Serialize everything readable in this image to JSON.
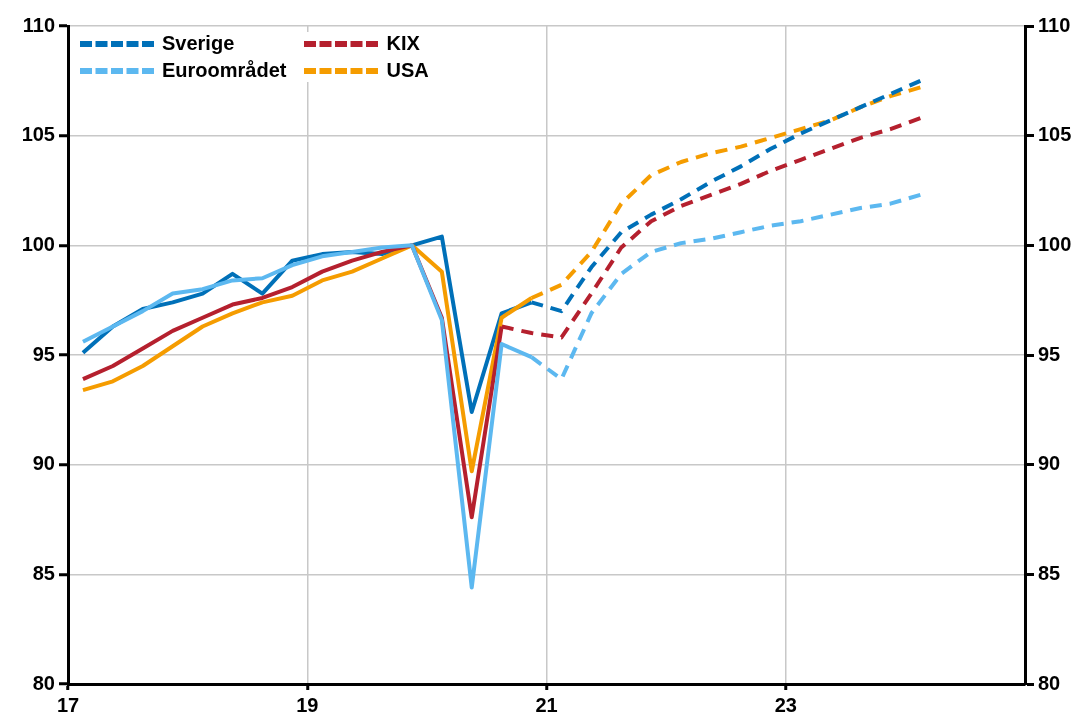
{
  "chart_data": {
    "type": "line",
    "xlim": [
      17,
      25
    ],
    "xticks": [
      17,
      19,
      21,
      23
    ],
    "ylim": [
      80,
      110
    ],
    "yticks": [
      80,
      85,
      90,
      95,
      100,
      105,
      110
    ],
    "y2lim": [
      80,
      110
    ],
    "y2ticks": [
      80,
      85,
      90,
      95,
      100,
      105,
      110
    ],
    "grid": true,
    "legend": "top left",
    "marker": "none",
    "series": [
      {
        "color": "#5cb8f0",
        "line_style": "solid",
        "x": [
          17.125,
          17.375,
          17.625,
          17.875,
          18.125,
          18.375,
          18.625,
          18.875,
          19.125,
          19.375,
          19.625,
          19.875,
          20.125,
          20.375,
          20.625,
          20.875
        ],
        "values": [
          95.6,
          96.3,
          97.0,
          97.8,
          98.0,
          98.4,
          98.5,
          99.1,
          99.5,
          99.7,
          99.9,
          100.0,
          96.6,
          84.4,
          95.5,
          94.9
        ]
      },
      {
        "color": "#b5202e",
        "line_style": "solid",
        "x": [
          17.125,
          17.375,
          17.625,
          17.875,
          18.125,
          18.375,
          18.625,
          18.875,
          19.125,
          19.375,
          19.625,
          19.875,
          20.125,
          20.375,
          20.625
        ],
        "values": [
          93.9,
          94.5,
          95.3,
          96.1,
          96.7,
          97.3,
          97.6,
          98.1,
          98.8,
          99.3,
          99.7,
          100.0,
          96.7,
          87.6,
          96.3
        ]
      },
      {
        "color": "#f59c00",
        "line_style": "solid",
        "x": [
          17.125,
          17.375,
          17.625,
          17.875,
          18.125,
          18.375,
          18.625,
          18.875,
          19.125,
          19.375,
          19.625,
          19.875,
          20.125,
          20.375,
          20.625,
          20.875
        ],
        "values": [
          93.4,
          93.8,
          94.5,
          95.4,
          96.3,
          96.9,
          97.4,
          97.7,
          98.4,
          98.8,
          99.4,
          100.0,
          98.8,
          89.7,
          96.7,
          97.6
        ]
      },
      {
        "color": "#0070b8",
        "line_style": "solid",
        "x": [
          17.125,
          17.375,
          17.625,
          17.875,
          18.125,
          18.375,
          18.625,
          18.875,
          19.125,
          19.375,
          19.625,
          19.875,
          20.125,
          20.375,
          20.625,
          20.875
        ],
        "values": [
          95.1,
          96.3,
          97.1,
          97.4,
          97.8,
          98.7,
          97.8,
          99.3,
          99.6,
          99.7,
          99.6,
          100.0,
          100.4,
          92.4,
          96.9,
          97.4
        ]
      },
      {
        "name": "Sverige",
        "color": "#0070b8",
        "line_style": "dashed",
        "x": [
          20.875,
          21.125,
          21.375,
          21.625,
          21.875,
          22.125,
          22.375,
          22.625,
          22.875,
          23.125,
          23.375,
          23.625,
          23.875,
          24.125
        ],
        "values": [
          97.4,
          97.0,
          99.0,
          100.6,
          101.4,
          102.1,
          102.9,
          103.6,
          104.4,
          105.1,
          105.7,
          106.3,
          106.9,
          107.5
        ]
      },
      {
        "name": "Euroområdet",
        "color": "#5cb8f0",
        "line_style": "dashed",
        "x": [
          20.875,
          21.125,
          21.375,
          21.625,
          21.875,
          22.125,
          22.375,
          22.625,
          22.875,
          23.125,
          23.375,
          23.625,
          23.875,
          24.125
        ],
        "values": [
          94.9,
          93.9,
          96.9,
          98.7,
          99.7,
          100.1,
          100.3,
          100.6,
          100.9,
          101.1,
          101.4,
          101.7,
          101.9,
          102.3
        ]
      },
      {
        "name": "KIX",
        "color": "#b5202e",
        "line_style": "dashed",
        "x": [
          20.625,
          20.875,
          21.125,
          21.375,
          21.625,
          21.875,
          22.125,
          22.375,
          22.625,
          22.875,
          23.125,
          23.375,
          23.625,
          23.875,
          24.125
        ],
        "values": [
          96.3,
          96.0,
          95.8,
          97.8,
          99.9,
          101.1,
          101.8,
          102.3,
          102.8,
          103.4,
          103.9,
          104.4,
          104.9,
          105.3,
          105.8
        ]
      },
      {
        "name": "USA",
        "color": "#f59c00",
        "line_style": "dashed",
        "x": [
          20.875,
          21.125,
          21.375,
          21.625,
          21.875,
          22.125,
          22.375,
          22.625,
          22.875,
          23.125,
          23.375,
          23.625,
          23.875,
          24.125
        ],
        "values": [
          97.6,
          98.2,
          99.7,
          101.9,
          103.2,
          103.8,
          104.2,
          104.5,
          104.9,
          105.3,
          105.7,
          106.3,
          106.8,
          107.2
        ]
      }
    ]
  }
}
